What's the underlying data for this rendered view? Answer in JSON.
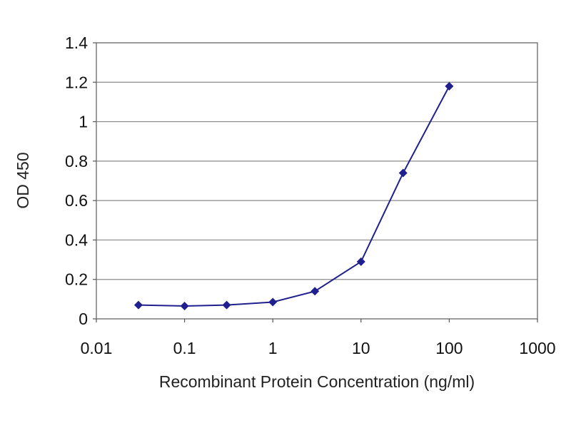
{
  "chart_data": {
    "type": "line",
    "title": "",
    "xlabel": "Recombinant Protein Concentration (ng/ml)",
    "ylabel": "OD 450",
    "x_scale": "log",
    "xlim": [
      0.01,
      1000
    ],
    "ylim": [
      0,
      1.4
    ],
    "x_ticks": [
      0.01,
      0.1,
      1,
      10,
      100,
      1000
    ],
    "x_tick_labels": [
      "0.01",
      "0.1",
      "1",
      "10",
      "100",
      "1000"
    ],
    "y_ticks": [
      0,
      0.2,
      0.4,
      0.6,
      0.8,
      1,
      1.2,
      1.4
    ],
    "y_tick_labels": [
      "0",
      "0.2",
      "0.4",
      "0.6",
      "0.8",
      "1",
      "1.2",
      "1.4"
    ],
    "grid": "horizontal",
    "legend": "none",
    "series": [
      {
        "x": [
          0.03,
          0.1,
          0.3,
          1,
          3,
          10,
          30,
          100
        ],
        "y": [
          0.07,
          0.065,
          0.07,
          0.085,
          0.14,
          0.29,
          0.74,
          1.18
        ],
        "color": "#1f1f8f",
        "marker": "diamond"
      }
    ]
  }
}
